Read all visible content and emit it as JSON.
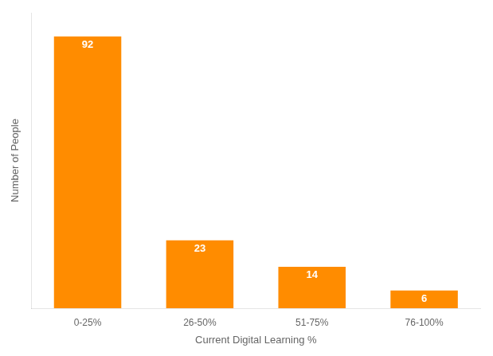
{
  "chart_data": {
    "type": "bar",
    "categories": [
      "0-25%",
      "26-50%",
      "51-75%",
      "76-100%"
    ],
    "values": [
      92,
      23,
      14,
      6
    ],
    "color": "#FF8C00",
    "xlabel": "Current Digital Learning %",
    "ylabel": "Number of People",
    "ylim": [
      0,
      100
    ],
    "grid": false,
    "data_labels": true,
    "tick_labels": "x"
  }
}
